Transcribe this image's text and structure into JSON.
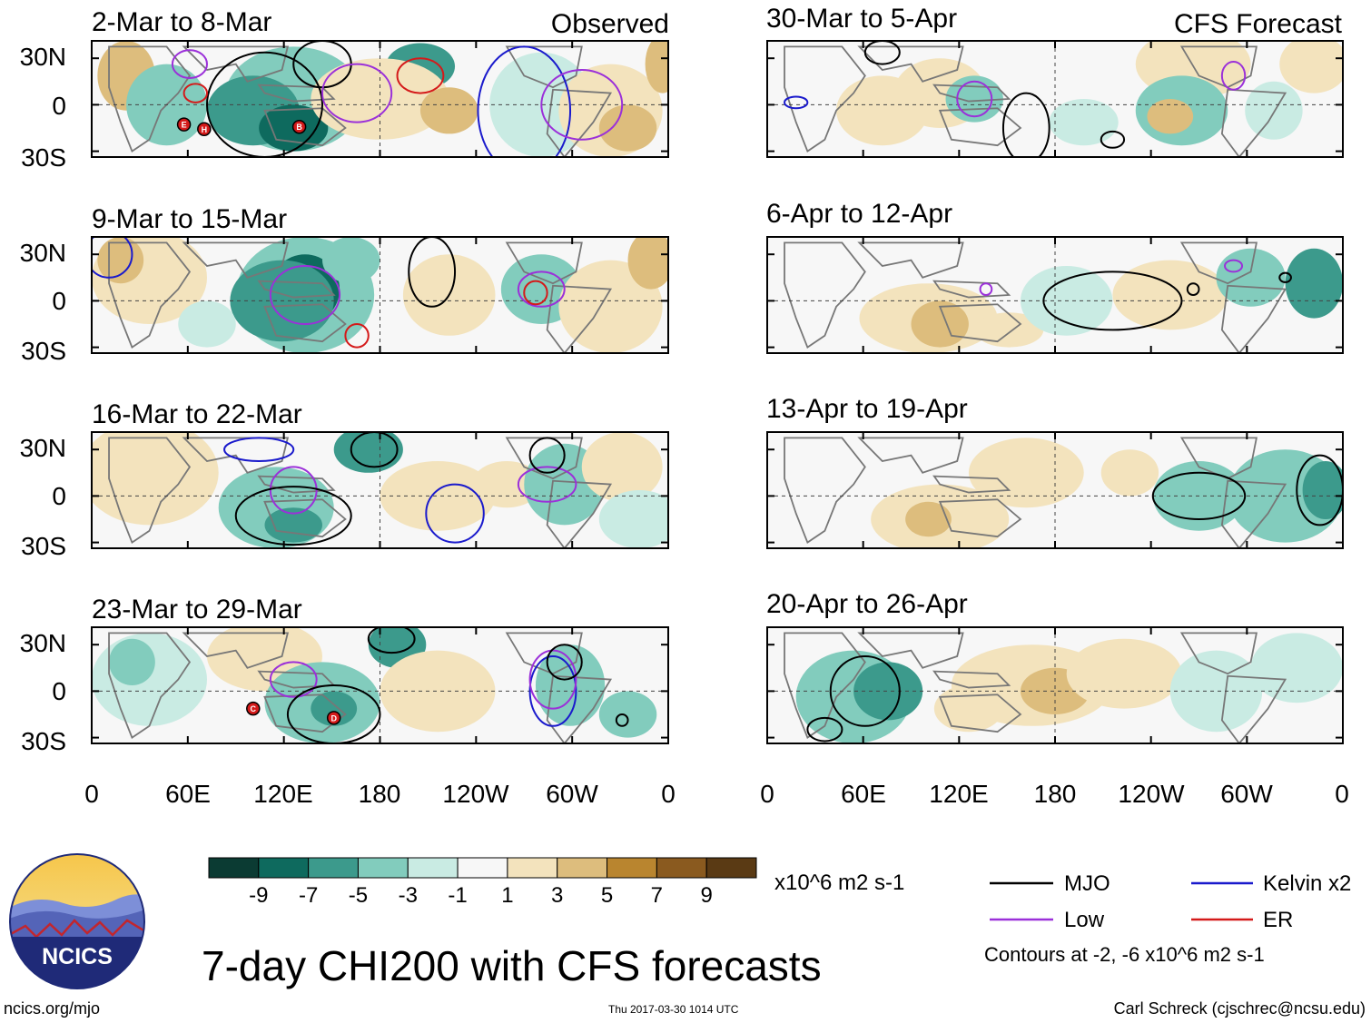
{
  "main_title": "7-day CHI200 with CFS forecasts",
  "source": "ncics.org/mjo",
  "timestamp": "Thu 2017-03-30 1014 UTC",
  "author": "Carl Schreck (cjschrec@ncsu.edu)",
  "logo_text": "NCICS",
  "columns": {
    "left_label": "Observed",
    "right_label": "CFS Forecast"
  },
  "panels_left": [
    "2-Mar to 8-Mar",
    "9-Mar to 15-Mar",
    "16-Mar to 22-Mar",
    "23-Mar to 29-Mar"
  ],
  "panels_right": [
    "30-Mar to 5-Apr",
    "6-Apr to 12-Apr",
    "13-Apr to 19-Apr",
    "20-Apr to 26-Apr"
  ],
  "lat_labels": [
    "30N",
    "0",
    "30S"
  ],
  "lon_labels": [
    "0",
    "60E",
    "120E",
    "180",
    "120W",
    "60W",
    "0"
  ],
  "colorbar": {
    "unit": "x10^6 m2 s-1",
    "ticks": [
      "-9",
      "-7",
      "-5",
      "-3",
      "-1",
      "1",
      "3",
      "5",
      "7",
      "9"
    ],
    "colors": [
      "#0b3b33",
      "#0e6a5e",
      "#3c9a8c",
      "#82ccbd",
      "#c9ebe3",
      "#f7f7f7",
      "#f3e3bd",
      "#ddbd7d",
      "#b9852f",
      "#8a5a1f",
      "#5a3a14"
    ]
  },
  "legend": {
    "items": [
      {
        "label": "MJO",
        "color": "#000000"
      },
      {
        "label": "Kelvin x2",
        "color": "#1a1acc"
      },
      {
        "label": "Low",
        "color": "#9b30d9"
      },
      {
        "label": "ER",
        "color": "#d41a1a"
      }
    ],
    "contours_note": "Contours at -2, -6 x10^6 m2 s-1"
  },
  "storm_markers": [
    {
      "panel": 0,
      "label": "E"
    },
    {
      "panel": 0,
      "label": "H"
    },
    {
      "panel": 0,
      "label": "B"
    },
    {
      "panel": 3,
      "label": "C"
    },
    {
      "panel": 3,
      "label": "D"
    }
  ]
}
